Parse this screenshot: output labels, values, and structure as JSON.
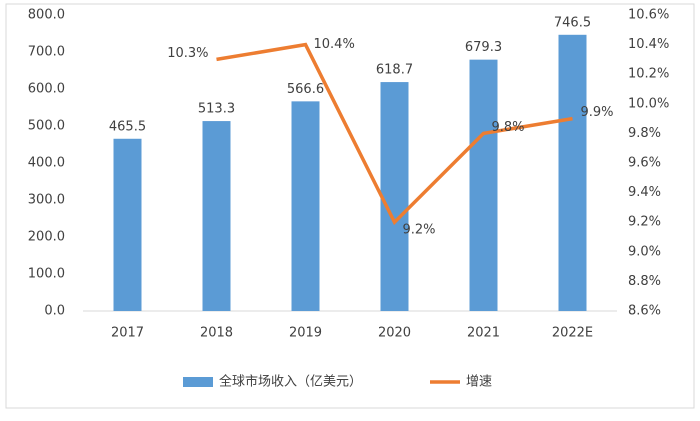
{
  "chart_data": {
    "type": "bar",
    "categories": [
      "2017",
      "2018",
      "2019",
      "2020",
      "2021",
      "2022E"
    ],
    "series": [
      {
        "name": "全球市场收入（亿美元）",
        "type": "bar",
        "color": "#5b9bd5",
        "values": [
          465.5,
          513.3,
          566.6,
          618.7,
          679.3,
          746.5
        ]
      },
      {
        "name": "增速",
        "type": "line",
        "axis": "y2",
        "color": "#ed7d31",
        "values": [
          null,
          10.3,
          10.4,
          9.2,
          9.8,
          9.9
        ],
        "value_labels": [
          null,
          "10.3%",
          "10.4%",
          "9.2%",
          "9.8%",
          "9.9%"
        ]
      }
    ],
    "ylim": [
      0,
      800
    ],
    "yticks": [
      {
        "value": 0,
        "label": "0.0"
      },
      {
        "value": 100,
        "label": "100.0"
      },
      {
        "value": 200,
        "label": "200.0"
      },
      {
        "value": 300,
        "label": "300.0"
      },
      {
        "value": 400,
        "label": "400.0"
      },
      {
        "value": 500,
        "label": "500.0"
      },
      {
        "value": 600,
        "label": "600.0"
      },
      {
        "value": 700,
        "label": "700.0"
      },
      {
        "value": 800,
        "label": "800.0"
      }
    ],
    "y2lim": [
      8.6,
      10.6
    ],
    "y2ticks": [
      {
        "value": 8.6,
        "label": "8.6%"
      },
      {
        "value": 8.8,
        "label": "8.8%"
      },
      {
        "value": 9.0,
        "label": "9.0%"
      },
      {
        "value": 9.2,
        "label": "9.2%"
      },
      {
        "value": 9.4,
        "label": "9.4%"
      },
      {
        "value": 9.6,
        "label": "9.6%"
      },
      {
        "value": 9.8,
        "label": "9.8%"
      },
      {
        "value": 10.0,
        "label": "10.0%"
      },
      {
        "value": 10.2,
        "label": "10.2%"
      },
      {
        "value": 10.4,
        "label": "10.4%"
      },
      {
        "value": 10.6,
        "label": "10.6%"
      }
    ],
    "legend": "bottom"
  }
}
